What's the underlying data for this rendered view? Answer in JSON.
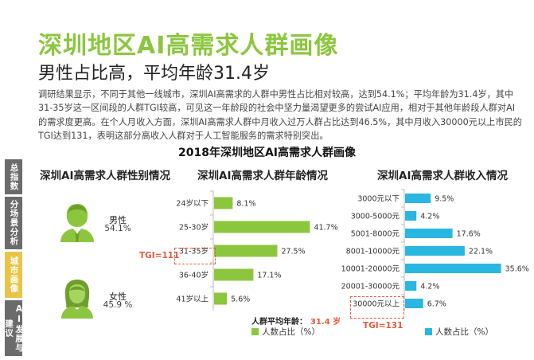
{
  "header": {
    "title": "深圳地区AI高需求人群画像",
    "subtitle": "男性占比高，平均年龄31.4岁"
  },
  "intro": {
    "lines": [
      "调研结果显示，不同于其他一线城市，深圳AI高需求的人群中男性占比相对较高，达到54.1%；平均年龄为31.4岁，其中",
      "31-35岁这一区间段的人群TGI较高，可见这一年龄段的社会中坚力量渴望更多的尝试AI应用，相对于其他年龄段人群对AI",
      "的需求度更高。在个人月收入方面，深圳AI高需求人群中月收入过万人群占比达到46.5%，其中月收入30000元以上市民的",
      "TGI达到131，表明这部分高收入人群对于人工智能服务的需求特别突出。"
    ]
  },
  "sidebar": {
    "tabs": [
      {
        "label": "总指数",
        "active": false
      },
      {
        "label": "分场景分析",
        "active": false
      },
      {
        "label": "城市画像",
        "active": true
      },
      {
        "label": "AI发展与建议",
        "active": false
      }
    ]
  },
  "figure_title": "2018年深圳地区AI高需求人群画像",
  "colors": {
    "brand_green": "#8cc63f",
    "age_bar": "#8cc63f",
    "income_bar": "#29b6e0",
    "highlight": "#e55a3c",
    "active_tab": "#e8c547"
  },
  "gender_panel": {
    "title": "深圳AI高需求人群性别情况",
    "male_label": "男性",
    "male_value": "54.1%",
    "female_label": "女性",
    "female_value": "45.9 %",
    "male_icon": "male-person-icon",
    "female_icon": "female-person-icon"
  },
  "age_panel": {
    "title": "深圳AI高需求人群年龄情况",
    "avg_label": "人群平均年龄：",
    "avg_value": "31.4 岁",
    "legend": "人数占比（%）",
    "tgi": "TGI=111"
  },
  "income_panel": {
    "title": "深圳AI高需求人群收入情况",
    "legend": "人数占比（%）",
    "tgi": "TGI=131"
  },
  "chart_data": [
    {
      "type": "bar",
      "orientation": "horizontal",
      "title": "深圳AI高需求人群年龄情况",
      "categories": [
        "24岁以下",
        "25-30岁",
        "31-35岁",
        "36-40岁",
        "41岁以上"
      ],
      "values": [
        8.1,
        41.7,
        27.5,
        17.1,
        5.6
      ],
      "value_labels": [
        "8.1%",
        "41.7%",
        "27.5%",
        "17.1%",
        "5.6%"
      ],
      "highlight_category": "31-35岁",
      "xlim": [
        0,
        45
      ],
      "grid": false,
      "legend": "bottom-right"
    },
    {
      "type": "bar",
      "orientation": "horizontal",
      "title": "深圳AI高需求人群收入情况",
      "categories": [
        "3000元以下",
        "3000-5000元",
        "5001-8000元",
        "8001-10000元",
        "10001-20000元",
        "20001-30000元",
        "30000元以上"
      ],
      "values": [
        9.5,
        4.2,
        17.6,
        22.1,
        35.6,
        4.2,
        6.7
      ],
      "value_labels": [
        "9.5%",
        "4.2%",
        "17.6%",
        "22.1%",
        "35.6%",
        "4.2%",
        "6.7%"
      ],
      "highlight_category": "30000元以上",
      "xlim": [
        0,
        36
      ],
      "grid": false,
      "legend": "bottom-right"
    }
  ]
}
